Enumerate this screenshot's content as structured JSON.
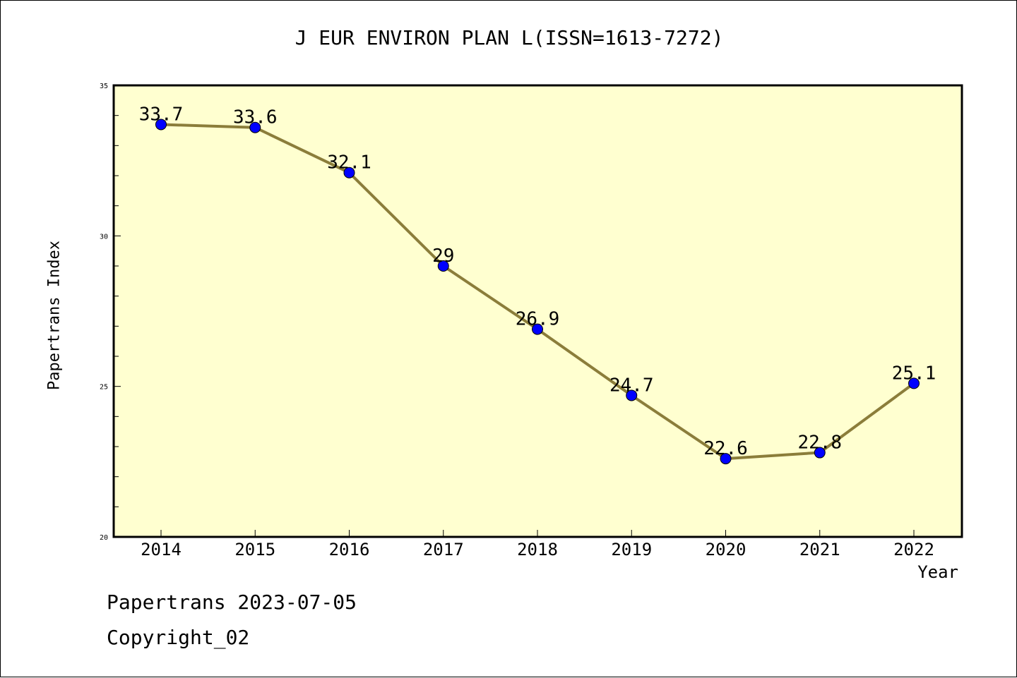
{
  "chart_data": {
    "type": "line",
    "title": "J EUR ENVIRON PLAN L(ISSN=1613-7272)",
    "xlabel": "Year",
    "ylabel": "Papertrans Index",
    "x": [
      "2014",
      "2015",
      "2016",
      "2017",
      "2018",
      "2019",
      "2020",
      "2021",
      "2022"
    ],
    "series": [
      {
        "values": [
          33.7,
          33.6,
          32.1,
          29,
          26.9,
          24.7,
          22.6,
          22.8,
          25.1
        ]
      }
    ],
    "data_labels": [
      "33.7",
      "33.6",
      "32.1",
      "29",
      "26.9",
      "24.7",
      "22.6",
      "22.8",
      "25.1"
    ],
    "ylim": [
      20,
      35
    ],
    "yticks": [
      "20",
      "25",
      "30",
      "35"
    ],
    "grid": false,
    "colors": {
      "plot_background": "#ffffd0",
      "line": "#8b7d3a",
      "marker": "#0000ff"
    }
  },
  "footer": {
    "line1": "Papertrans 2023-07-05",
    "line2": "Copyright_02"
  }
}
